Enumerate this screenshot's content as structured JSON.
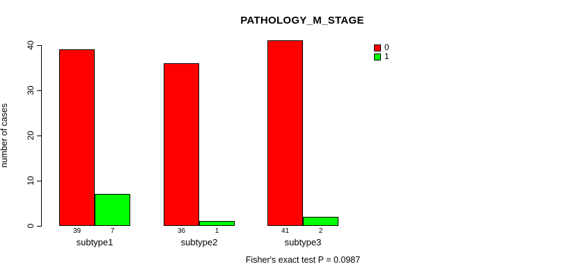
{
  "chart_data": {
    "type": "bar",
    "title": "PATHOLOGY_M_STAGE",
    "ylabel": "number of cases",
    "xlabel": "",
    "ylim": [
      0,
      40
    ],
    "yticks": [
      0,
      10,
      20,
      30,
      40
    ],
    "categories": [
      "subtype1",
      "subtype2",
      "subtype3"
    ],
    "series": [
      {
        "name": "0",
        "color": "#ff0000",
        "values": [
          39,
          36,
          41
        ]
      },
      {
        "name": "1",
        "color": "#00ff00",
        "values": [
          7,
          1,
          2
        ]
      }
    ],
    "legend_position": "top-right",
    "grid": false,
    "annotation": "Fisher's exact test P = 0.0987"
  },
  "colors": {
    "background": "#ffffff",
    "axis": "#000000",
    "text": "#000000",
    "series0": "#ff0000",
    "series1": "#00ff00"
  }
}
